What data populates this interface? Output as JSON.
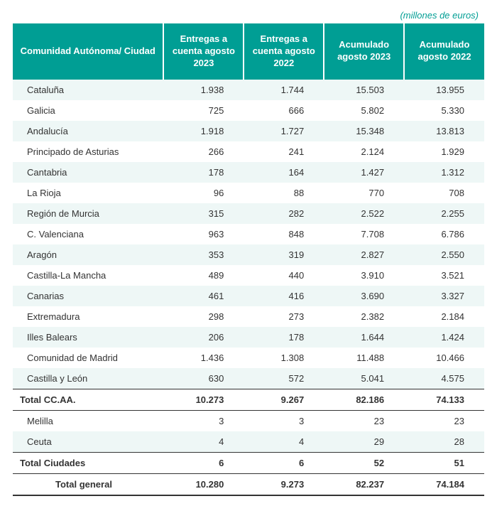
{
  "caption": "(millones de euros)",
  "colors": {
    "header_bg": "#009e94",
    "header_text": "#ffffff",
    "stripe_bg": "#eef7f6",
    "text": "#333333",
    "caption": "#009e94"
  },
  "columns": [
    "Comunidad Autónoma/ Ciudad",
    "Entregas a cuenta agosto 2023",
    "Entregas a cuenta agosto 2022",
    "Acumulado agosto 2023",
    "Acumulado agosto 2022"
  ],
  "rows": [
    {
      "type": "data",
      "label": "Cataluña",
      "v": [
        "1.938",
        "1.744",
        "15.503",
        "13.955"
      ]
    },
    {
      "type": "data",
      "label": "Galicia",
      "v": [
        "725",
        "666",
        "5.802",
        "5.330"
      ]
    },
    {
      "type": "data",
      "label": "Andalucía",
      "v": [
        "1.918",
        "1.727",
        "15.348",
        "13.813"
      ]
    },
    {
      "type": "data",
      "label": "Principado de Asturias",
      "v": [
        "266",
        "241",
        "2.124",
        "1.929"
      ]
    },
    {
      "type": "data",
      "label": "Cantabria",
      "v": [
        "178",
        "164",
        "1.427",
        "1.312"
      ]
    },
    {
      "type": "data",
      "label": "La Rioja",
      "v": [
        "96",
        "88",
        "770",
        "708"
      ]
    },
    {
      "type": "data",
      "label": "Región de Murcia",
      "v": [
        "315",
        "282",
        "2.522",
        "2.255"
      ]
    },
    {
      "type": "data",
      "label": "C. Valenciana",
      "v": [
        "963",
        "848",
        "7.708",
        "6.786"
      ]
    },
    {
      "type": "data",
      "label": "Aragón",
      "v": [
        "353",
        "319",
        "2.827",
        "2.550"
      ]
    },
    {
      "type": "data",
      "label": "Castilla-La Mancha",
      "v": [
        "489",
        "440",
        "3.910",
        "3.521"
      ]
    },
    {
      "type": "data",
      "label": "Canarias",
      "v": [
        "461",
        "416",
        "3.690",
        "3.327"
      ]
    },
    {
      "type": "data",
      "label": "Extremadura",
      "v": [
        "298",
        "273",
        "2.382",
        "2.184"
      ]
    },
    {
      "type": "data",
      "label": "Illes Balears",
      "v": [
        "206",
        "178",
        "1.644",
        "1.424"
      ]
    },
    {
      "type": "data",
      "label": "Comunidad de Madrid",
      "v": [
        "1.436",
        "1.308",
        "11.488",
        "10.466"
      ]
    },
    {
      "type": "data",
      "label": "Castilla y León",
      "v": [
        "630",
        "572",
        "5.041",
        "4.575"
      ]
    },
    {
      "type": "subtotal",
      "label": "Total CC.AA.",
      "v": [
        "10.273",
        "9.267",
        "82.186",
        "74.133"
      ]
    },
    {
      "type": "data",
      "label": "Melilla",
      "v": [
        "3",
        "3",
        "23",
        "23"
      ]
    },
    {
      "type": "data",
      "label": "Ceuta",
      "v": [
        "4",
        "4",
        "29",
        "28"
      ]
    },
    {
      "type": "subtotal",
      "label": "Total Ciudades",
      "v": [
        "6",
        "6",
        "52",
        "51"
      ]
    },
    {
      "type": "grand",
      "label": "Total general",
      "v": [
        "10.280",
        "9.273",
        "82.237",
        "74.184"
      ]
    }
  ]
}
